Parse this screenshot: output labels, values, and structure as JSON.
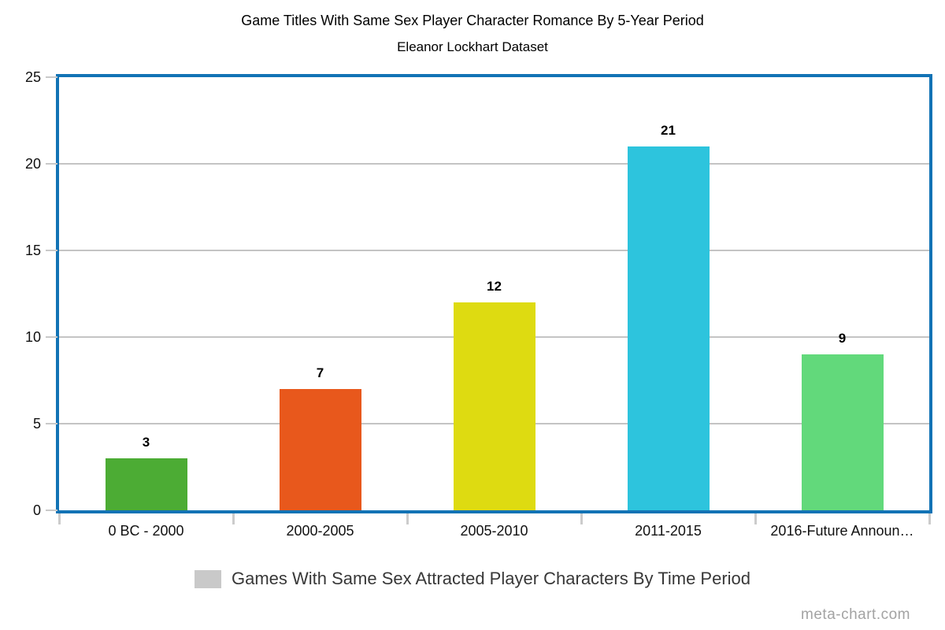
{
  "title": "Game Titles With Same Sex Player Character Romance By 5-Year Period",
  "subtitle": "Eleanor Lockhart Dataset",
  "legend": {
    "label": "Games With Same Sex Attracted Player Characters By Time Period",
    "swatch_color": "#c9c9c9"
  },
  "watermark": "meta-chart.com",
  "colors": {
    "plot_border": "#1273b5",
    "gridline": "#c4c4c4",
    "tick": "#cccccc",
    "text": "#000000",
    "legend_text": "#383838",
    "watermark_text": "#a3a3a3"
  },
  "chart_data": {
    "type": "bar",
    "title": "Game Titles With Same Sex Player Character Romance By 5-Year Period",
    "subtitle": "Eleanor Lockhart Dataset",
    "categories": [
      "0 BC - 2000",
      "2000-2005",
      "2005-2010",
      "2011-2015",
      "2016-Future Announ…"
    ],
    "values": [
      3,
      7,
      12,
      21,
      9
    ],
    "bar_colors": [
      "#4cac34",
      "#e8581c",
      "#dedb11",
      "#2dc4dd",
      "#62d97b"
    ],
    "value_labels": [
      "3",
      "7",
      "12",
      "21",
      "9"
    ],
    "xlabel": "",
    "ylabel": "",
    "ylim": [
      0,
      25
    ],
    "yticks": [
      0,
      5,
      10,
      15,
      20,
      25
    ],
    "grid": true,
    "legend_entries": [
      "Games With Same Sex Attracted Player Characters By Time Period"
    ],
    "legend_position": "bottom"
  }
}
